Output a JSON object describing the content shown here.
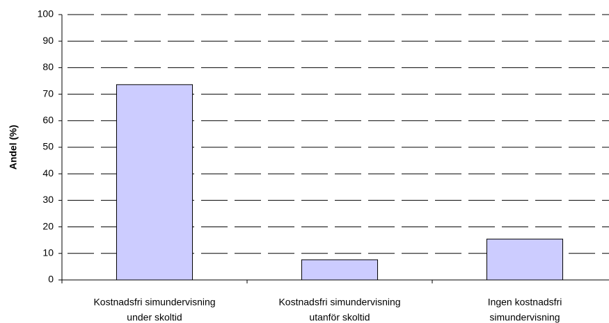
{
  "chart_data": {
    "type": "bar",
    "y_label": "Andel (%)",
    "categories": [
      [
        "Kostnadsfri simundervisning",
        "under skoltid"
      ],
      [
        "Kostnadsfri simundervisning",
        "utanför skoltid"
      ],
      [
        "Ingen kostnadsfri",
        "simundervisning"
      ]
    ],
    "values": [
      73.6,
      7.6,
      15.4
    ],
    "color": "#ccccff",
    "ylim": [
      0,
      100
    ],
    "yticks": [
      0,
      10,
      20,
      30,
      40,
      50,
      60,
      70,
      80,
      90,
      100
    ],
    "grid": true
  }
}
